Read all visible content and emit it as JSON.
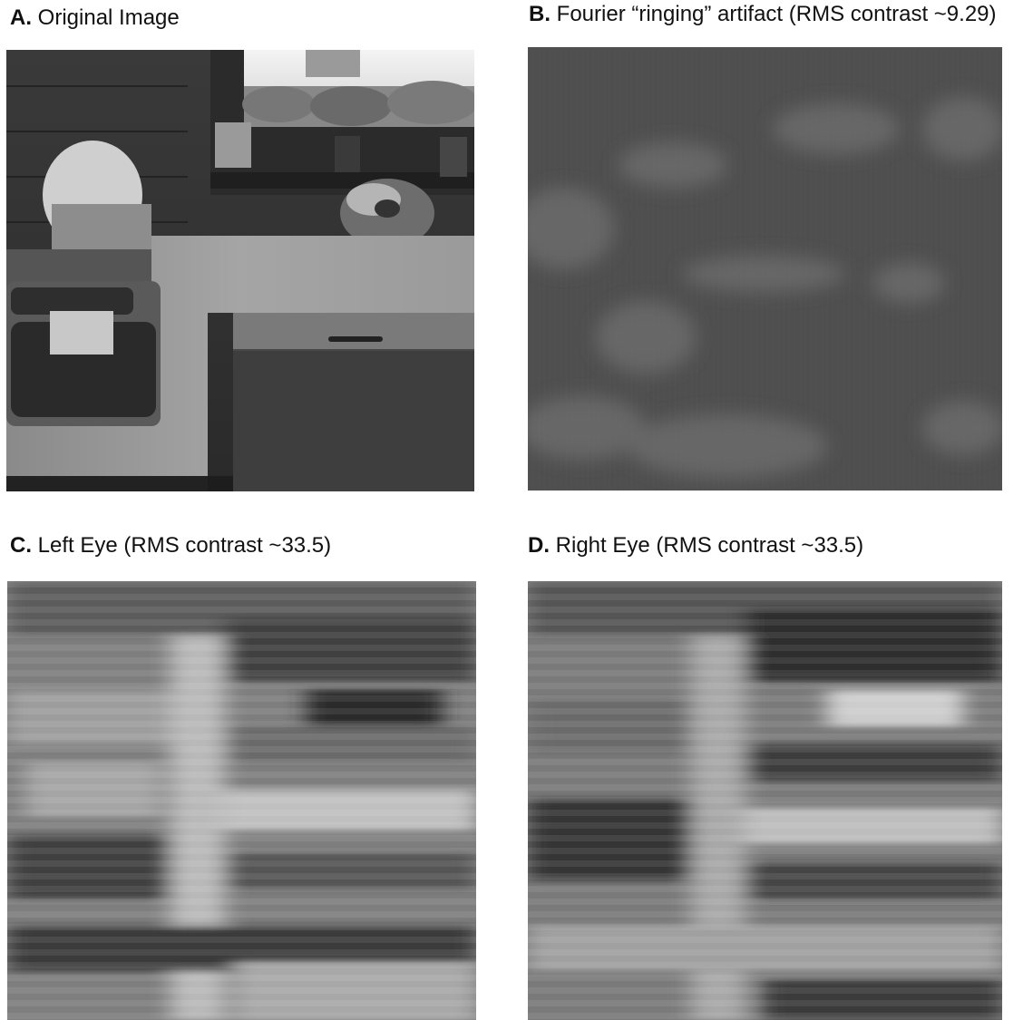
{
  "panels": {
    "a": {
      "letter": "A.",
      "caption": "Original Image"
    },
    "b": {
      "letter": "B.",
      "caption": "Fourier “ringing” artifact (RMS contrast ~9.29)"
    },
    "c": {
      "letter": "C.",
      "caption": "Left Eye (RMS contrast ~33.5)"
    },
    "d": {
      "letter": "D.",
      "caption": "Right Eye (RMS contrast ~33.5)"
    }
  },
  "colors": {
    "background": "#ffffff",
    "text": "#111111"
  }
}
